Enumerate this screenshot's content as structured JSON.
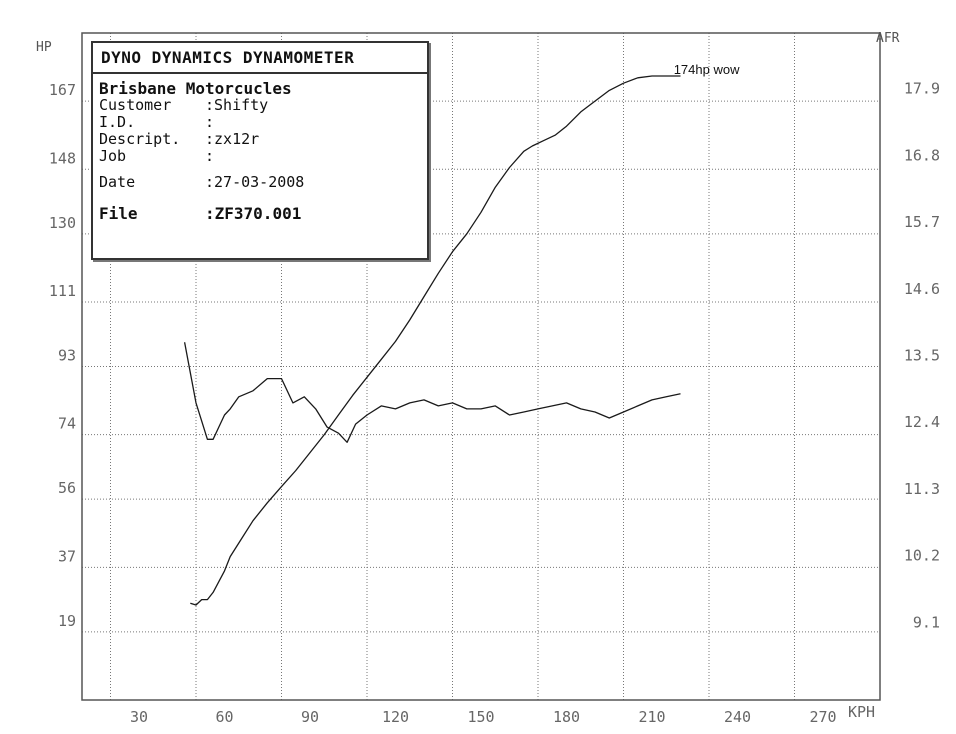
{
  "info_box": {
    "title": "DYNO DYNAMICS DYNAMOMETER",
    "company": "Brisbane Motorcucles",
    "fields": [
      {
        "label": "Customer",
        "sep": ":",
        "value": "Shifty"
      },
      {
        "label": "I.D.",
        "sep": ":",
        "value": ""
      },
      {
        "label": "Descript.",
        "sep": ":",
        "value": "zx12r"
      },
      {
        "label": "Job",
        "sep": ":",
        "value": ""
      },
      {
        "label": "Date",
        "sep": ":",
        "value": "27-03-2008"
      },
      {
        "label": "File",
        "sep": ":",
        "value": "ZF370.001"
      }
    ]
  },
  "chart_data": {
    "type": "line",
    "xlabel": "KPH",
    "ylabel_left": "HP",
    "ylabel_right": "AFR",
    "xlim": [
      10,
      290
    ],
    "ylim_left": [
      0,
      186
    ],
    "ylim_right": [
      8.0,
      19.0
    ],
    "x_ticks": [
      30,
      60,
      90,
      120,
      150,
      180,
      210,
      240,
      270
    ],
    "y_ticks_left": [
      19,
      37,
      56,
      74,
      93,
      111,
      130,
      148,
      167
    ],
    "y_ticks_right": [
      9.1,
      10.2,
      11.3,
      12.4,
      13.5,
      14.6,
      15.7,
      16.8,
      17.9
    ],
    "grid": true,
    "annotations": [
      {
        "text": "174hp wow",
        "x": 212,
        "y_left": 174
      }
    ],
    "series": [
      {
        "axis": "left",
        "color": "#1a1a1a",
        "x": [
          48,
          50,
          52,
          54,
          56,
          58,
          60,
          62,
          66,
          70,
          75,
          80,
          85,
          90,
          95,
          100,
          105,
          110,
          115,
          120,
          125,
          130,
          135,
          140,
          145,
          150,
          155,
          160,
          165,
          168,
          172,
          176,
          180,
          185,
          190,
          195,
          200,
          205,
          210,
          215,
          220
        ],
        "y": [
          27,
          26.5,
          28,
          28,
          30,
          33,
          36,
          40,
          45,
          50,
          55,
          59.5,
          64,
          69,
          74,
          79.5,
          85,
          90,
          95,
          100,
          106,
          112.5,
          119,
          125,
          130,
          136,
          143,
          148.5,
          153,
          154.5,
          156,
          157.5,
          160,
          164,
          167,
          170,
          172,
          173.5,
          174,
          174,
          174
        ]
      },
      {
        "axis": "right",
        "color": "#1a1a1a",
        "x": [
          46,
          48,
          50,
          52,
          54,
          56,
          58,
          60,
          62,
          65,
          70,
          75,
          80,
          84,
          88,
          92,
          96,
          100,
          103,
          106,
          110,
          115,
          120,
          125,
          130,
          135,
          140,
          145,
          150,
          155,
          160,
          165,
          170,
          175,
          180,
          185,
          190,
          195,
          200,
          205,
          210,
          215,
          220
        ],
        "y": [
          13.9,
          13.4,
          12.9,
          12.6,
          12.3,
          12.3,
          12.5,
          12.7,
          12.8,
          13.0,
          13.1,
          13.3,
          13.3,
          12.9,
          13.0,
          12.8,
          12.5,
          12.4,
          12.25,
          12.55,
          12.7,
          12.85,
          12.8,
          12.9,
          12.95,
          12.85,
          12.9,
          12.8,
          12.8,
          12.85,
          12.7,
          12.75,
          12.8,
          12.85,
          12.9,
          12.8,
          12.75,
          12.65,
          12.75,
          12.85,
          12.95,
          13.0,
          13.05
        ]
      }
    ]
  }
}
